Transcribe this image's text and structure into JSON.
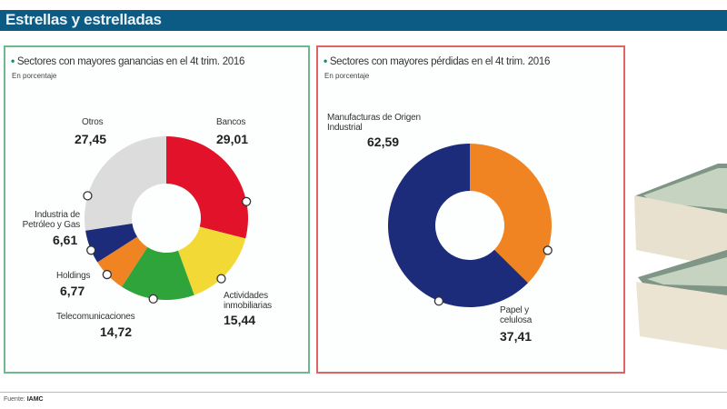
{
  "title": "Estrellas y estrelladas",
  "source_label": "Fuente:",
  "source": "IAMC",
  "chart_data": [
    {
      "type": "pie",
      "donut": true,
      "title": "Sectores con mayores ganancias en el 4t trim. 2016",
      "subtitle": "En porcentaje",
      "categories": [
        "Bancos",
        "Actividades inmobiliarias",
        "Telecomunicaciones",
        "Holdings",
        "Industria de Petróleo y Gas",
        "Otros"
      ],
      "values": [
        29.01,
        15.44,
        14.72,
        6.77,
        6.61,
        27.45
      ],
      "value_labels": [
        "29,01",
        "15,44",
        "14,72",
        "6,77",
        "6,61",
        "27,45"
      ],
      "colors": [
        "#e3122b",
        "#f2d935",
        "#2ea43a",
        "#f08423",
        "#1d2c7a",
        "#dcdcdc"
      ]
    },
    {
      "type": "pie",
      "donut": true,
      "title": "Sectores con mayores pérdidas en el 4t trim. 2016",
      "subtitle": "En porcentaje",
      "categories": [
        "Papel y celulosa",
        "Manufacturas de Origen Industrial"
      ],
      "values": [
        37.41,
        62.59
      ],
      "value_labels": [
        "37,41",
        "62,59"
      ],
      "colors": [
        "#f08423",
        "#1d2c7a"
      ]
    }
  ]
}
